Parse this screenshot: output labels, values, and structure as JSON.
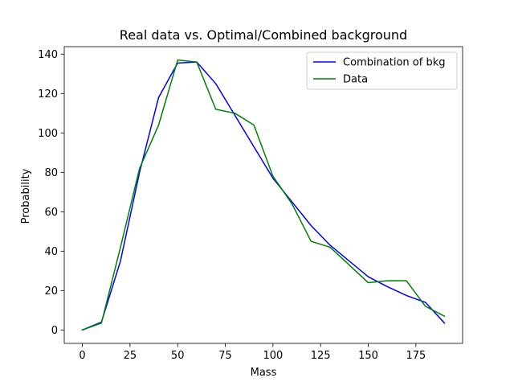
{
  "chart_data": {
    "type": "line",
    "title": "Real data vs. Optimal/Combined background",
    "xlabel": "Mass",
    "ylabel": "Probability",
    "xlim": [
      -9.5,
      199.5
    ],
    "ylim": [
      -6.8,
      143.8
    ],
    "x_ticks": [
      0,
      25,
      50,
      75,
      100,
      125,
      150,
      175
    ],
    "y_ticks": [
      0,
      20,
      40,
      60,
      80,
      100,
      120,
      140
    ],
    "grid": false,
    "legend_position": "top-right",
    "series": [
      {
        "name": "Combination of bkg",
        "color": "#0000ff",
        "x": [
          0,
          10,
          20,
          30,
          40,
          50,
          60,
          70,
          80,
          90,
          100,
          110,
          120,
          130,
          140,
          150,
          160,
          170,
          180,
          190
        ],
        "y": [
          0,
          4,
          35,
          80,
          118,
          135.5,
          136,
          125,
          109,
          93,
          77,
          65,
          53,
          43,
          35,
          27,
          22,
          17.5,
          14,
          3.5
        ]
      },
      {
        "name": "Data",
        "color": "#008000",
        "x": [
          0,
          10,
          20,
          30,
          40,
          50,
          60,
          70,
          80,
          90,
          100,
          110,
          120,
          130,
          140,
          150,
          160,
          170,
          180,
          190
        ],
        "y": [
          0,
          3.5,
          42,
          82,
          104,
          137,
          136,
          112,
          110,
          104,
          78,
          64,
          45,
          42,
          33,
          24,
          25,
          25,
          12,
          7
        ]
      }
    ]
  }
}
